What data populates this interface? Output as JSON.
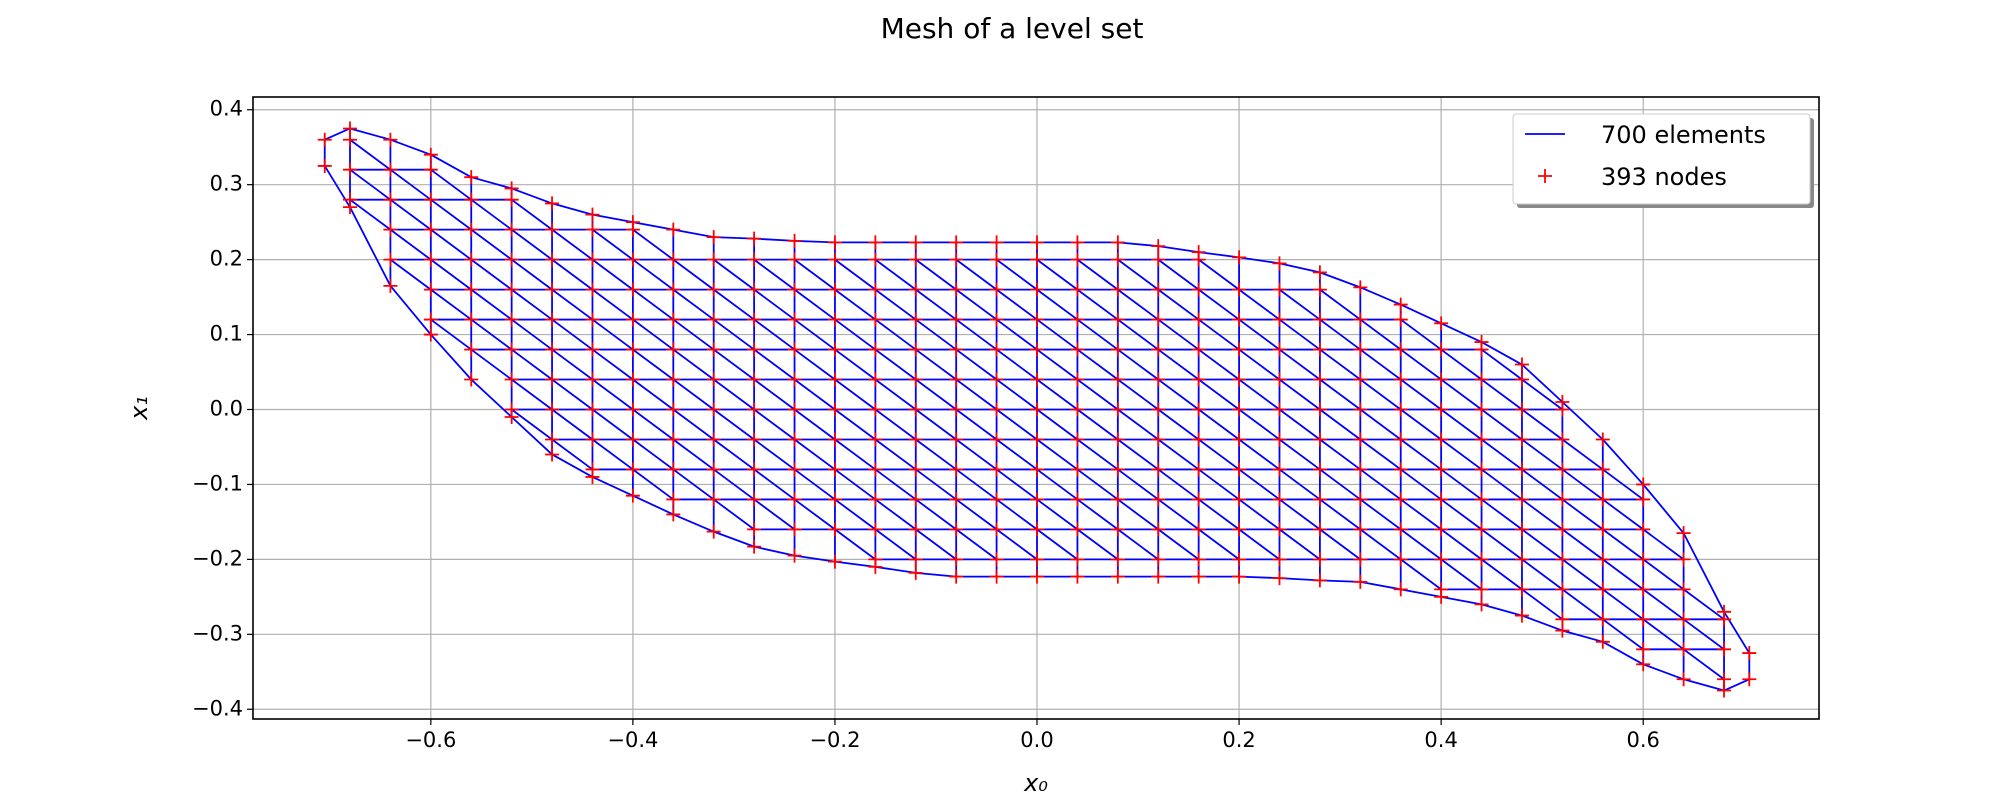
{
  "chart_data": {
    "type": "mesh",
    "title": "Mesh of a level set",
    "x_label": "x₀",
    "y_label": "x₁",
    "xlim": [
      -0.776,
      0.774
    ],
    "ylim": [
      -0.413,
      0.417
    ],
    "xticks": [
      {
        "value": -0.6,
        "label": "−0.6"
      },
      {
        "value": -0.4,
        "label": "−0.4"
      },
      {
        "value": -0.2,
        "label": "−0.2"
      },
      {
        "value": 0,
        "label": "0.0"
      },
      {
        "value": 0.2,
        "label": "0.2"
      },
      {
        "value": 0.4,
        "label": "0.4"
      },
      {
        "value": 0.6,
        "label": "0.6"
      }
    ],
    "yticks": [
      {
        "value": -0.4,
        "label": "−0.4"
      },
      {
        "value": -0.3,
        "label": "−0.3"
      },
      {
        "value": -0.2,
        "label": "−0.2"
      },
      {
        "value": -0.1,
        "label": "−0.1"
      },
      {
        "value": 0,
        "label": "0.0"
      },
      {
        "value": 0.1,
        "label": "0.1"
      },
      {
        "value": 0.2,
        "label": "0.2"
      },
      {
        "value": 0.3,
        "label": "0.3"
      },
      {
        "value": 0.4,
        "label": "0.4"
      }
    ],
    "grid": true,
    "legend": "upper right",
    "series": [
      {
        "name": "700 elements",
        "color": "#0000ff"
      },
      {
        "name": "393 nodes",
        "color": "#ff0000",
        "marker": "+"
      }
    ],
    "columns": [
      {
        "x": -0.705,
        "y": [
          0.36,
          0.325
        ]
      },
      {
        "x": -0.68,
        "y": [
          0.375,
          0.36,
          0.32,
          0.28,
          0.27
        ]
      },
      {
        "x": -0.64,
        "y": [
          0.36,
          0.32,
          0.28,
          0.24,
          0.2,
          0.165
        ]
      },
      {
        "x": -0.6,
        "y": [
          0.34,
          0.32,
          0.28,
          0.24,
          0.2,
          0.16,
          0.12,
          0.1
        ]
      },
      {
        "x": -0.56,
        "y": [
          0.31,
          0.28,
          0.24,
          0.2,
          0.16,
          0.12,
          0.08,
          0.04
        ]
      },
      {
        "x": -0.52,
        "y": [
          0.295,
          0.28,
          0.24,
          0.2,
          0.16,
          0.12,
          0.08,
          0.04,
          0,
          -0.01
        ]
      },
      {
        "x": -0.48,
        "y": [
          0.275,
          0.24,
          0.2,
          0.16,
          0.12,
          0.08,
          0.04,
          0,
          -0.04,
          -0.06
        ]
      },
      {
        "x": -0.44,
        "y": [
          0.26,
          0.24,
          0.2,
          0.16,
          0.12,
          0.08,
          0.04,
          0,
          -0.04,
          -0.08,
          -0.09
        ]
      },
      {
        "x": -0.4,
        "y": [
          0.25,
          0.24,
          0.2,
          0.16,
          0.12,
          0.08,
          0.04,
          0,
          -0.04,
          -0.08,
          -0.115
        ]
      },
      {
        "x": -0.36,
        "y": [
          0.24,
          0.2,
          0.16,
          0.12,
          0.08,
          0.04,
          0,
          -0.04,
          -0.08,
          -0.12,
          -0.14
        ]
      },
      {
        "x": -0.32,
        "y": [
          0.23,
          0.2,
          0.16,
          0.12,
          0.08,
          0.04,
          0,
          -0.04,
          -0.08,
          -0.12,
          -0.163
        ]
      },
      {
        "x": -0.28,
        "y": [
          0.228,
          0.2,
          0.16,
          0.12,
          0.08,
          0.04,
          0,
          -0.04,
          -0.08,
          -0.12,
          -0.16,
          -0.183
        ]
      },
      {
        "x": -0.24,
        "y": [
          0.225,
          0.2,
          0.16,
          0.12,
          0.08,
          0.04,
          0,
          -0.04,
          -0.08,
          -0.12,
          -0.16,
          -0.195
        ]
      },
      {
        "x": -0.2,
        "y": [
          0.223,
          0.2,
          0.16,
          0.12,
          0.08,
          0.04,
          0,
          -0.04,
          -0.08,
          -0.12,
          -0.16,
          -0.203
        ]
      },
      {
        "x": -0.16,
        "y": [
          0.223,
          0.2,
          0.16,
          0.12,
          0.08,
          0.04,
          0,
          -0.04,
          -0.08,
          -0.12,
          -0.16,
          -0.2,
          -0.21
        ]
      },
      {
        "x": -0.12,
        "y": [
          0.223,
          0.2,
          0.16,
          0.12,
          0.08,
          0.04,
          0,
          -0.04,
          -0.08,
          -0.12,
          -0.16,
          -0.2,
          -0.218
        ]
      },
      {
        "x": -0.08,
        "y": [
          0.223,
          0.2,
          0.16,
          0.12,
          0.08,
          0.04,
          0,
          -0.04,
          -0.08,
          -0.12,
          -0.16,
          -0.2,
          -0.223
        ]
      },
      {
        "x": -0.04,
        "y": [
          0.223,
          0.2,
          0.16,
          0.12,
          0.08,
          0.04,
          0,
          -0.04,
          -0.08,
          -0.12,
          -0.16,
          -0.2,
          -0.223
        ]
      },
      {
        "x": 0,
        "y": [
          0.223,
          0.2,
          0.16,
          0.12,
          0.08,
          0.04,
          0,
          -0.04,
          -0.08,
          -0.12,
          -0.16,
          -0.2,
          -0.223
        ]
      },
      {
        "x": 0.04,
        "y": [
          0.223,
          0.2,
          0.16,
          0.12,
          0.08,
          0.04,
          0,
          -0.04,
          -0.08,
          -0.12,
          -0.16,
          -0.2,
          -0.223
        ]
      },
      {
        "x": 0.08,
        "y": [
          0.223,
          0.2,
          0.16,
          0.12,
          0.08,
          0.04,
          0,
          -0.04,
          -0.08,
          -0.12,
          -0.16,
          -0.2,
          -0.223
        ]
      },
      {
        "x": 0.12,
        "y": [
          0.218,
          0.2,
          0.16,
          0.12,
          0.08,
          0.04,
          0,
          -0.04,
          -0.08,
          -0.12,
          -0.16,
          -0.2,
          -0.223
        ]
      },
      {
        "x": 0.16,
        "y": [
          0.21,
          0.2,
          0.16,
          0.12,
          0.08,
          0.04,
          0,
          -0.04,
          -0.08,
          -0.12,
          -0.16,
          -0.2,
          -0.223
        ]
      },
      {
        "x": 0.2,
        "y": [
          0.203,
          0.16,
          0.12,
          0.08,
          0.04,
          0,
          -0.04,
          -0.08,
          -0.12,
          -0.16,
          -0.2,
          -0.223
        ]
      },
      {
        "x": 0.24,
        "y": [
          0.195,
          0.16,
          0.12,
          0.08,
          0.04,
          0,
          -0.04,
          -0.08,
          -0.12,
          -0.16,
          -0.2,
          -0.225
        ]
      },
      {
        "x": 0.28,
        "y": [
          0.183,
          0.16,
          0.12,
          0.08,
          0.04,
          0,
          -0.04,
          -0.08,
          -0.12,
          -0.16,
          -0.2,
          -0.228
        ]
      },
      {
        "x": 0.32,
        "y": [
          0.163,
          0.12,
          0.08,
          0.04,
          0,
          -0.04,
          -0.08,
          -0.12,
          -0.16,
          -0.2,
          -0.23
        ]
      },
      {
        "x": 0.36,
        "y": [
          0.14,
          0.12,
          0.08,
          0.04,
          0,
          -0.04,
          -0.08,
          -0.12,
          -0.16,
          -0.2,
          -0.24
        ]
      },
      {
        "x": 0.4,
        "y": [
          0.115,
          0.08,
          0.04,
          0,
          -0.04,
          -0.08,
          -0.12,
          -0.16,
          -0.2,
          -0.24,
          -0.25
        ]
      },
      {
        "x": 0.44,
        "y": [
          0.09,
          0.08,
          0.04,
          0,
          -0.04,
          -0.08,
          -0.12,
          -0.16,
          -0.2,
          -0.24,
          -0.26
        ]
      },
      {
        "x": 0.48,
        "y": [
          0.06,
          0.04,
          0,
          -0.04,
          -0.08,
          -0.12,
          -0.16,
          -0.2,
          -0.24,
          -0.275
        ]
      },
      {
        "x": 0.52,
        "y": [
          0.01,
          0,
          -0.04,
          -0.08,
          -0.12,
          -0.16,
          -0.2,
          -0.24,
          -0.28,
          -0.295
        ]
      },
      {
        "x": 0.56,
        "y": [
          -0.04,
          -0.08,
          -0.12,
          -0.16,
          -0.2,
          -0.24,
          -0.28,
          -0.31
        ]
      },
      {
        "x": 0.6,
        "y": [
          -0.1,
          -0.12,
          -0.16,
          -0.2,
          -0.24,
          -0.28,
          -0.32,
          -0.34
        ]
      },
      {
        "x": 0.64,
        "y": [
          -0.165,
          -0.2,
          -0.24,
          -0.28,
          -0.32,
          -0.36
        ]
      },
      {
        "x": 0.68,
        "y": [
          -0.27,
          -0.28,
          -0.32,
          -0.36,
          -0.375
        ]
      },
      {
        "x": 0.705,
        "y": [
          -0.325,
          -0.36
        ]
      }
    ]
  }
}
